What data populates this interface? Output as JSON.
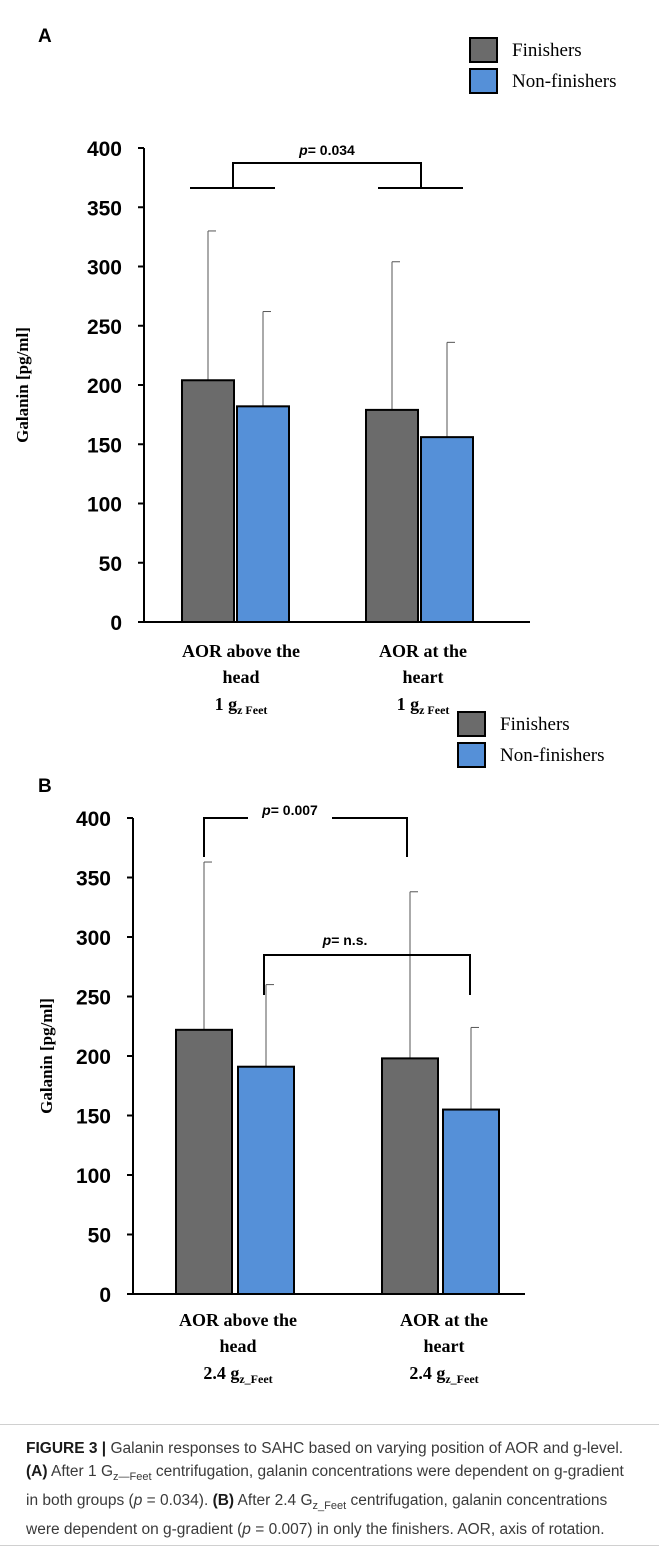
{
  "chart_data": [
    {
      "panel_label": "A",
      "type": "bar",
      "categories": [
        [
          "AOR above the",
          "head",
          "1 g",
          "z  Feet"
        ],
        [
          "AOR at the",
          "heart",
          "1 g",
          "z  Feet"
        ]
      ],
      "series": [
        {
          "name": "Finishers",
          "values": [
            204,
            179
          ],
          "errors": [
            126,
            125
          ],
          "color": "#6b6b6b"
        },
        {
          "name": "Non-finishers",
          "values": [
            182,
            156
          ],
          "errors": [
            80,
            80
          ],
          "color": "#5590d8"
        }
      ],
      "ylabel": "Galanin [pg/ml]",
      "ylim": [
        0,
        400
      ],
      "yticks": [
        "0",
        "50",
        "100",
        "150",
        "200",
        "250",
        "300",
        "350",
        "400"
      ],
      "legend_placement": "top-right",
      "annotations": [
        {
          "text": "p= 0.034",
          "p_prefix": "p",
          "p_rest": "= 0.034",
          "between": "groups"
        }
      ]
    },
    {
      "panel_label": "B",
      "type": "bar",
      "categories": [
        [
          "AOR above the",
          "head",
          "2.4 g",
          "z_Feet"
        ],
        [
          "AOR at the",
          "heart",
          "2.4 g",
          "z_Feet"
        ]
      ],
      "series": [
        {
          "name": "Finishers",
          "values": [
            222,
            198
          ],
          "errors": [
            141,
            140
          ],
          "color": "#6b6b6b"
        },
        {
          "name": "Non-finishers",
          "values": [
            191,
            155
          ],
          "errors": [
            69,
            69
          ],
          "color": "#5590d8"
        }
      ],
      "ylabel": "Galanin [pg/ml]",
      "ylim": [
        0,
        400
      ],
      "yticks": [
        "0",
        "50",
        "100",
        "150",
        "200",
        "250",
        "300",
        "350",
        "400"
      ],
      "legend_placement": "top-right",
      "annotations": [
        {
          "text": "p= 0.007",
          "p_prefix": "p",
          "p_rest": "= 0.007",
          "between": "Finishers"
        },
        {
          "text": "p= n.s.",
          "p_prefix": "p",
          "p_rest": "= n.s.",
          "between": "Non-finishers"
        }
      ]
    }
  ],
  "caption": {
    "figure_label": "FIGURE 3 |",
    "text_1": " Galanin responses to SAHC based on varying position of AOR and g-level. ",
    "label_a": "(A)",
    "text_2a": " After 1 G",
    "sub_a": "z—Feet",
    "text_2b": " centrifugation, galanin concentrations were dependent on g-gradient in both groups (",
    "p_a": "p",
    "text_2c": " = 0.034). ",
    "label_b": "(B)",
    "text_3a": " After 2.4 G",
    "sub_b": "z_Feet",
    "text_3b": " centrifugation, galanin concentrations were dependent on g-gradient (",
    "p_b": "p",
    "text_3c": " = 0.007) in only the finishers. AOR, axis of rotation."
  }
}
